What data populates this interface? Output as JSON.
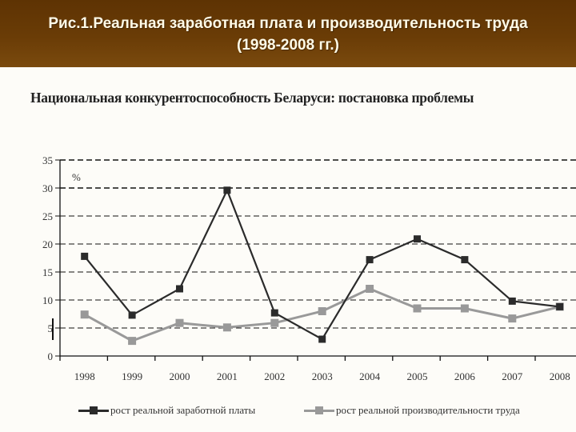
{
  "header": {
    "title": "Рис.1.Реальная заработная плата и производительность труда (1998-2008 гг.)"
  },
  "subtitle": "Национальная конкурентоспособность Беларуси: постановка проблемы",
  "colors": {
    "header_bg": "#6a3c06",
    "header_text": "#fffbe8",
    "wages_series": "#2b2b2b",
    "productivity_series": "#999999"
  },
  "chart_data": {
    "type": "line",
    "title": "Национальная конкурентоспособность Беларуси: постановка проблемы",
    "xlabel": "",
    "ylabel": "%",
    "categories": [
      "1998",
      "1999",
      "2000",
      "2001",
      "2002",
      "2003",
      "2004",
      "2005",
      "2006",
      "2007",
      "2008"
    ],
    "series": [
      {
        "name": "рост реальной заработной платы",
        "color": "#2b2b2b",
        "marker": "square",
        "values": [
          17.8,
          7.3,
          12.0,
          29.6,
          7.7,
          3.0,
          17.2,
          20.9,
          17.2,
          9.8,
          8.8
        ]
      },
      {
        "name": "рост реальной производительности труда",
        "color": "#999999",
        "marker": "square",
        "values": [
          7.4,
          2.7,
          5.9,
          5.1,
          5.9,
          8.0,
          12.0,
          8.5,
          8.5,
          6.7,
          8.8
        ]
      }
    ],
    "ylim": [
      0,
      35
    ],
    "yticks": [
      0,
      5,
      10,
      15,
      20,
      25,
      30,
      35
    ],
    "grid": "horizontal dashed",
    "legend_position": "bottom"
  }
}
